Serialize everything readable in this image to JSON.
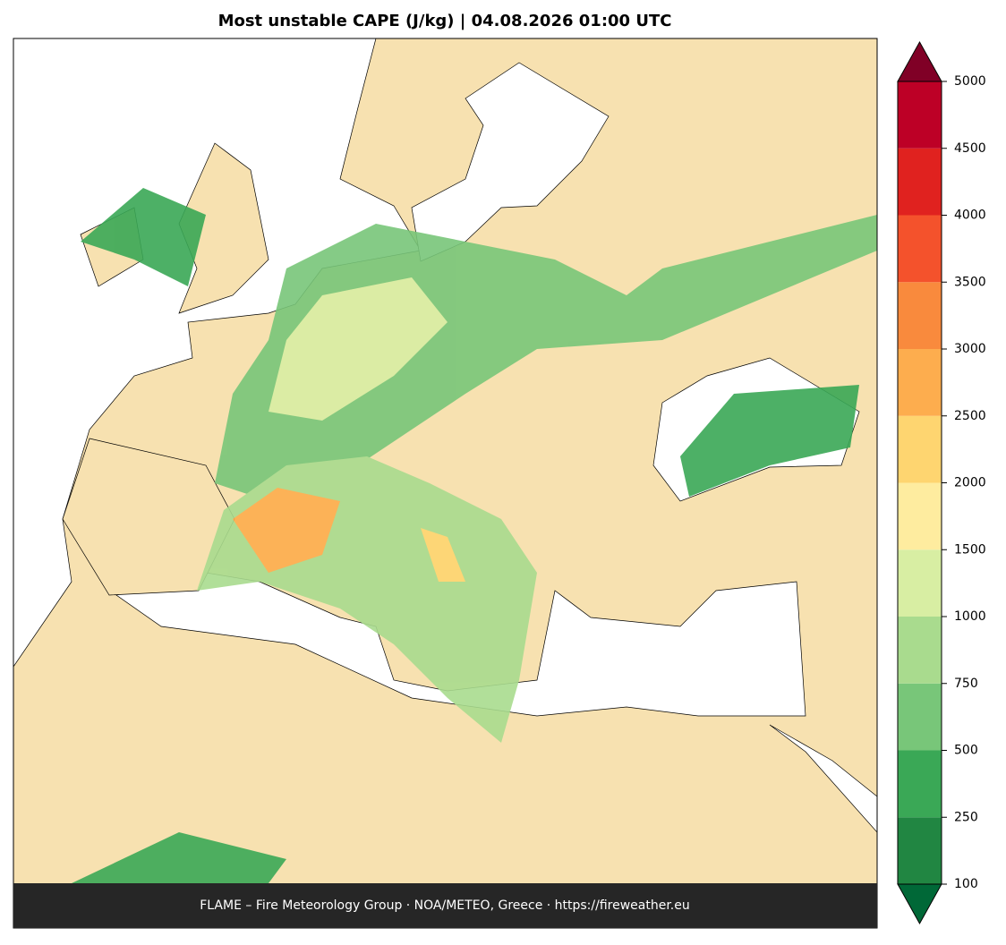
{
  "title": "Most unstable CAPE (J/kg)  |  04.08.2026 01:00 UTC",
  "footer": "FLAME – Fire Meteorology Group · NOA/METEO, Greece · https://fireweather.eu",
  "colorbar": {
    "ticks": [
      100,
      250,
      500,
      750,
      1000,
      1500,
      2000,
      2500,
      3000,
      3500,
      4000,
      4500,
      5000
    ],
    "colors": [
      "#218642",
      "#3aa856",
      "#78c679",
      "#a9db8e",
      "#d8eea3",
      "#feec9f",
      "#fed570",
      "#fdad4e",
      "#f98a3d",
      "#f4522c",
      "#e0221f",
      "#bd0026"
    ],
    "under_color": "#006837",
    "over_color": "#800026"
  }
}
